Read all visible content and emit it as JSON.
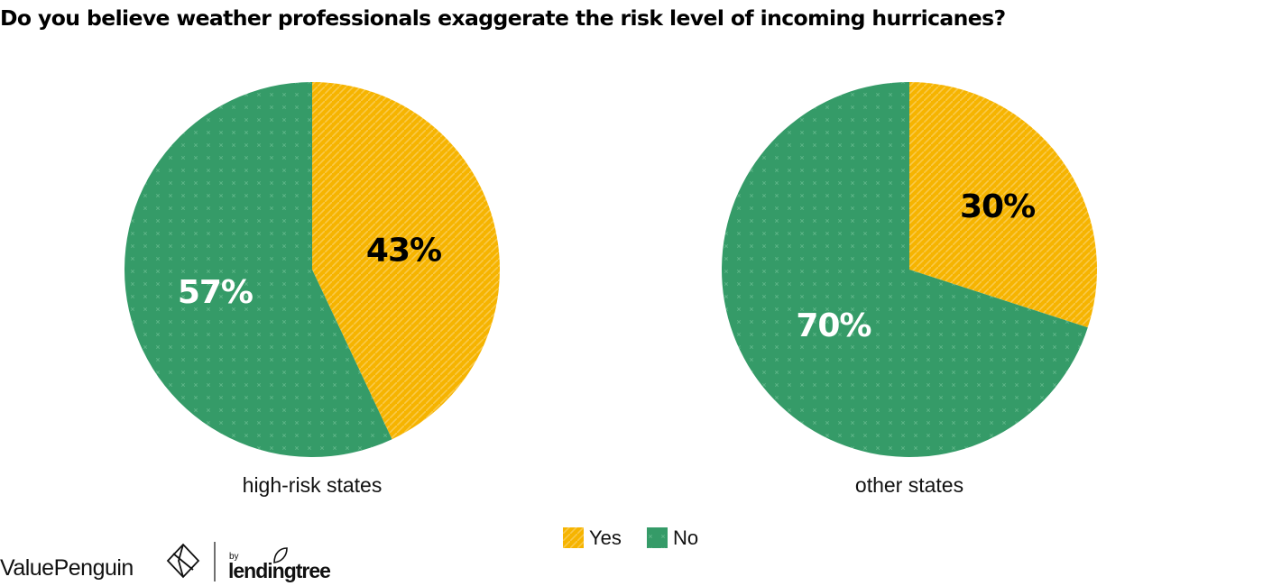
{
  "title": "Do you believe weather professionals exaggerate the risk level of incoming hurricanes?",
  "colors": {
    "yes": "#F6B400",
    "no": "#359B68"
  },
  "legend": [
    {
      "label": "Yes",
      "key": "yes"
    },
    {
      "label": "No",
      "key": "no"
    }
  ],
  "chart_data": [
    {
      "type": "pie",
      "caption": "high-risk states",
      "slices": [
        {
          "label": "Yes",
          "value": 43,
          "display": "43%"
        },
        {
          "label": "No",
          "value": 57,
          "display": "57%"
        }
      ]
    },
    {
      "type": "pie",
      "caption": "other states",
      "slices": [
        {
          "label": "Yes",
          "value": 30,
          "display": "30%"
        },
        {
          "label": "No",
          "value": 70,
          "display": "70%"
        }
      ]
    }
  ],
  "branding": {
    "valuepenguin": "ValuePenguin",
    "by": "by",
    "lendingtree": "lendingtree"
  }
}
